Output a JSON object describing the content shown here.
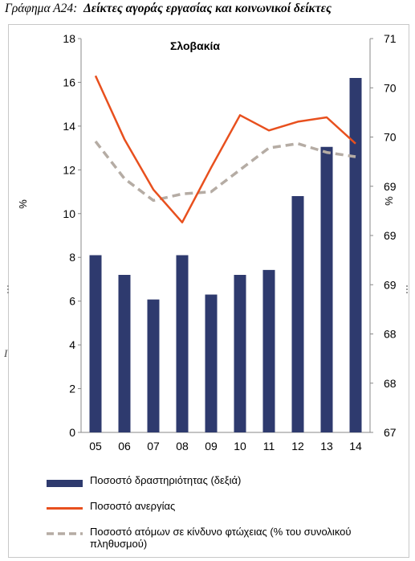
{
  "caption": {
    "lead": "Γράφημα Α24:",
    "rest": "Δείκτες αγοράς εργασίας και κοινωνικοί δείκτες"
  },
  "stray_mark": "I",
  "chart_data": {
    "type": "bar",
    "title": "Σλοβακία",
    "categories": [
      "05",
      "06",
      "07",
      "08",
      "09",
      "10",
      "11",
      "12",
      "13",
      "14"
    ],
    "series": [
      {
        "name": "Ποσοστό δραστηριότητας (δεξιά)",
        "kind": "bar",
        "axis": "right",
        "color": "#2e3a6e",
        "values": [
          68.8,
          68.6,
          68.35,
          68.8,
          68.4,
          68.6,
          68.65,
          69.4,
          69.9,
          70.6
        ]
      },
      {
        "name": "Ποσοστό ανεργίας",
        "kind": "line",
        "axis": "left",
        "color": "#e8501e",
        "values": [
          16.3,
          13.4,
          11.1,
          9.6,
          12.1,
          14.5,
          13.8,
          14.2,
          14.4,
          13.2
        ]
      },
      {
        "name": "Ποσοστό ατόμων σε κίνδυνο φτώχειας (% του συνολικού πληθυσμού)",
        "kind": "line",
        "axis": "left",
        "style": "dashed",
        "color": "#b5aca4",
        "values": [
          13.3,
          11.6,
          10.6,
          10.9,
          11.0,
          12.0,
          13.0,
          13.2,
          12.8,
          12.6
        ]
      }
    ],
    "ylabel": "%",
    "ylabel_right": "%",
    "ylim": [
      0,
      18
    ],
    "yticks": [
      "0",
      "2",
      "4",
      "6",
      "8",
      "10",
      "12",
      "14",
      "16",
      "18"
    ],
    "ylim_right": [
      67,
      71
    ],
    "yticks_right": [
      "67",
      "68",
      "68",
      "69",
      "69",
      "69",
      "70",
      "70",
      "71"
    ],
    "legend_position": "bottom",
    "grid": false
  }
}
